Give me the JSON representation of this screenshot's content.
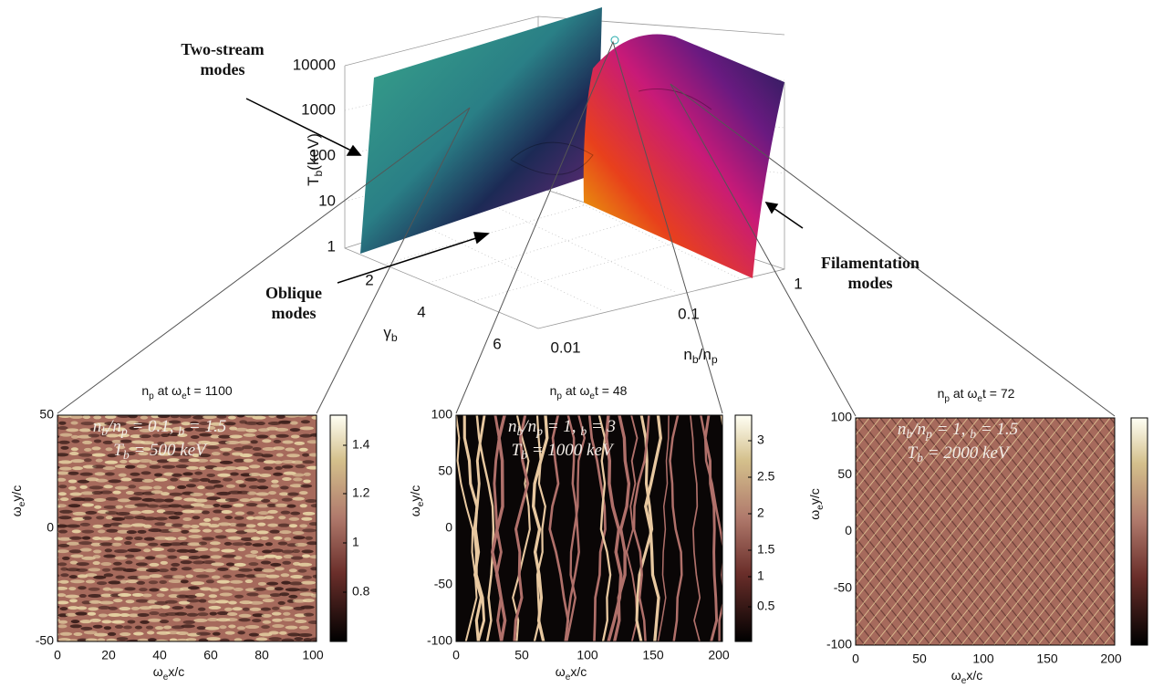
{
  "annotations": {
    "two_stream": [
      "Two-stream",
      "modes"
    ],
    "oblique": [
      "Oblique",
      "modes"
    ],
    "filamentation": [
      "Filamentation",
      "modes"
    ]
  },
  "main_plot": {
    "z_label": [
      "T",
      "b",
      "(keV)"
    ],
    "z_ticks": [
      "10000",
      "1000",
      "100",
      "10",
      "1"
    ],
    "gamma_label": [
      "γ",
      "b"
    ],
    "gamma_ticks": [
      "2",
      "4",
      "6"
    ],
    "n_label": [
      "n",
      "b",
      "/n",
      "p"
    ],
    "n_ticks": [
      "0.01",
      "0.1",
      "1"
    ]
  },
  "panels": [
    {
      "title": [
        "n",
        "p",
        " at ω",
        "e",
        "t = 1100"
      ],
      "params": [
        "n",
        "b",
        "/n",
        "p",
        " = 0.1,  ",
        "b",
        " = 1.5"
      ],
      "temperature": [
        "T",
        "b",
        " = 500 keV"
      ],
      "y_label": [
        "ω",
        "e",
        "y/c"
      ],
      "x_label": [
        "ω",
        "e",
        "x/c"
      ],
      "y_ticks": [
        "50",
        "0",
        "-50"
      ],
      "x_ticks": [
        "0",
        "20",
        "40",
        "60",
        "80",
        "100"
      ],
      "colorbar_ticks": [
        "1.4",
        "1.2",
        "1",
        "0.8"
      ]
    },
    {
      "title": [
        "n",
        "p",
        " at ω",
        "e",
        "t = 48"
      ],
      "params": [
        "n",
        "b",
        "/n",
        "p",
        " = 1,  ",
        "b",
        " = 3"
      ],
      "temperature": [
        "T",
        "b",
        " = 1000 keV"
      ],
      "y_label": [
        "ω",
        "e",
        "y/c"
      ],
      "x_label": [
        "ω",
        "e",
        "x/c"
      ],
      "y_ticks": [
        "100",
        "50",
        "0",
        "-50",
        "-100"
      ],
      "x_ticks": [
        "0",
        "50",
        "100",
        "150",
        "200"
      ],
      "colorbar_ticks": [
        "3",
        "2.5",
        "2",
        "1.5",
        "1",
        "0.5"
      ]
    },
    {
      "title": [
        "n",
        "p",
        " at ω",
        "e",
        "t = 72"
      ],
      "params": [
        "n",
        "b",
        "/n",
        "p",
        " = 1,  ",
        "b",
        " = 1.5"
      ],
      "temperature": [
        "T",
        "b",
        " = 2000 keV"
      ],
      "y_label": [
        "ω",
        "e",
        "y/c"
      ],
      "x_label": [
        "ω",
        "e",
        "x/c"
      ],
      "y_ticks": [
        "100",
        "50",
        "0",
        "-50",
        "-100"
      ],
      "x_ticks": [
        "0",
        "50",
        "100",
        "150",
        "200"
      ],
      "colorbar_ticks": []
    }
  ]
}
